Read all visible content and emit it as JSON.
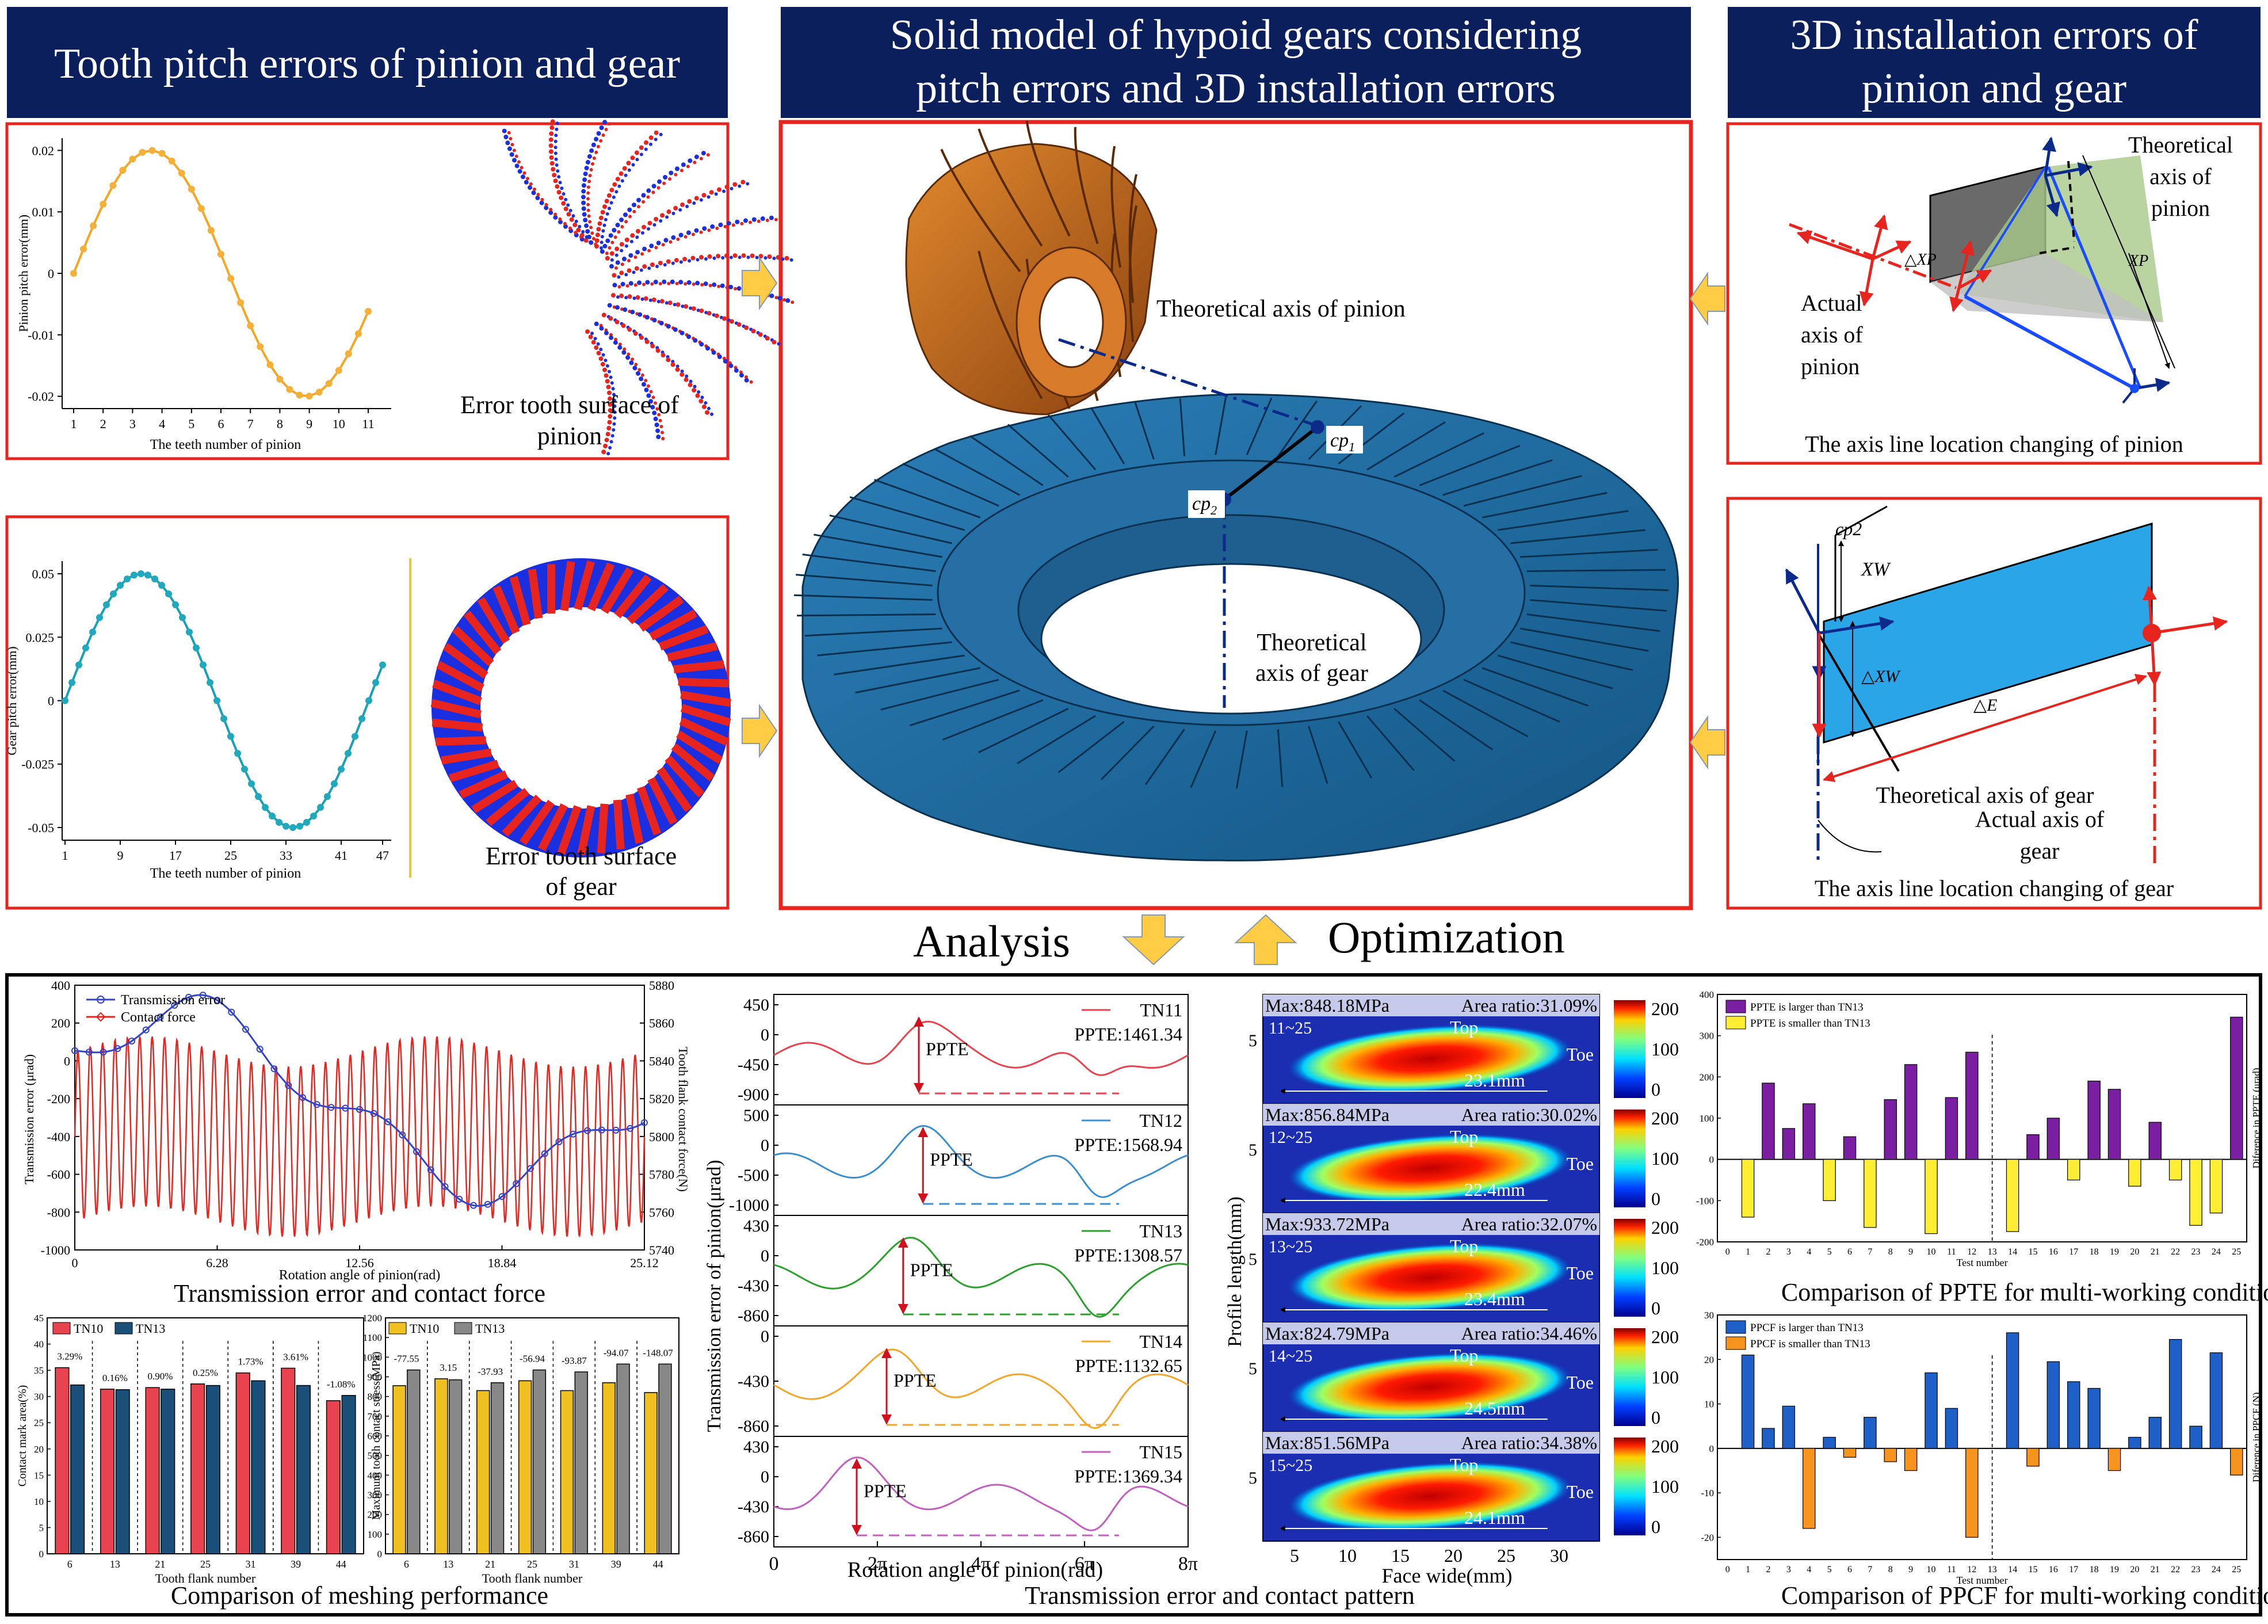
{
  "headers": {
    "pitch_errors": "Tooth pitch errors of pinion and gear",
    "solid_model_line1": "Solid model of hypoid gears considering",
    "solid_model_line2": "pitch errors and 3D installation errors",
    "install_line1": "3D installation errors of",
    "install_line2": "pinion and gear"
  },
  "colors": {
    "header_bg": "#0b1f5c",
    "frame_red": "#e8241f",
    "gear_blue": "#1f6aa0",
    "pinion_orange": "#c8661e",
    "arrow_yellow": "#ffcc44"
  },
  "pinion_panel": {
    "ylabel": "Pinion pitch error(mm)",
    "xlabel": "The teeth number of pinion",
    "surface_caption_1": "Error tooth surface of",
    "surface_caption_2": "pinion",
    "chart_data": {
      "type": "line",
      "x": [
        1,
        2,
        3,
        4,
        5,
        6,
        7,
        8,
        9,
        10,
        11
      ],
      "yticks": [
        "0.02",
        "0.01",
        "0",
        "-0.01",
        "-0.02"
      ],
      "ylim": [
        -0.022,
        0.022
      ],
      "series": [
        {
          "name": "pinion pitch error",
          "amplitude": 0.02,
          "period_teeth": 11
        }
      ]
    }
  },
  "gear_panel": {
    "ylabel": "Gear pitch error(mm)",
    "xlabel": "The teeth number of pinion",
    "surface_caption_1": "Error tooth surface",
    "surface_caption_2": "of gear",
    "chart_data": {
      "type": "line",
      "xticks": [
        "1",
        "9",
        "17",
        "25",
        "33",
        "41",
        "47"
      ],
      "yticks": [
        "0.05",
        "0.025",
        "0",
        "-0.025",
        "-0.05"
      ],
      "ylim": [
        -0.055,
        0.055
      ],
      "series": [
        {
          "name": "gear pitch error",
          "amplitude": 0.05,
          "points": 47
        }
      ]
    }
  },
  "model_panel": {
    "pinion_axis_label": "Theoretical axis of pinion",
    "cp1": "cp",
    "cp1_sub": "1",
    "cp2": "cp",
    "cp2_sub": "2",
    "gear_axis_label_1": "Theoretical",
    "gear_axis_label_2": "axis of gear"
  },
  "pinion_install": {
    "actual_1": "Actual",
    "actual_2": "axis of",
    "actual_3": "pinion",
    "theo_1": "Theoretical",
    "theo_2": "axis of",
    "theo_3": "pinion",
    "dxp": "△XP",
    "xp": "XP",
    "caption": "The axis line  location changing of  pinion"
  },
  "gear_install": {
    "cp2": "cp2",
    "xw": "XW",
    "dxw": "△XW",
    "de": "△E",
    "theo": "Theoretical axis of gear",
    "actual_1": "Actual axis of",
    "actual_2": "gear",
    "caption": "The axis line  location changing of  gear"
  },
  "flow": {
    "analysis": "Analysis",
    "optimization": "Optimization"
  },
  "te_force": {
    "legend_te": "Transmission error",
    "legend_cf": "Contact force",
    "ylabel_left": "Transmission error (μrad)",
    "ylabel_right": "Tooth flank contact force(N)",
    "xlabel": "Rotation angle of pinion(rad)",
    "caption": "Transmission error and contact force",
    "chart_data": {
      "type": "line",
      "xticks": [
        "0",
        "6.28",
        "12.56",
        "18.84",
        "25.12"
      ],
      "yticks_left": [
        "400",
        "200",
        "0",
        "-200",
        "-400",
        "-600",
        "-800",
        "-1000"
      ],
      "yticks_right": [
        "5880",
        "5860",
        "5840",
        "5820",
        "5800",
        "5780",
        "5760",
        "5740"
      ],
      "xlim": [
        0,
        25.12
      ],
      "ylim_left": [
        -1000,
        400
      ],
      "ylim_right": [
        5740,
        5880
      ]
    }
  },
  "meshing": {
    "caption": "Comparison of meshing performance",
    "left": {
      "ylabel": "Contact mark area(%)",
      "xlabel": "Tooth flank number",
      "legend": [
        "TN10",
        "TN13"
      ],
      "chart_data": {
        "type": "bar",
        "categories": [
          "6",
          "13",
          "21",
          "25",
          "31",
          "39",
          "44"
        ],
        "series": [
          {
            "name": "TN10",
            "values": [
              35.5,
              31.4,
              31.7,
              32.4,
              34.5,
              35.4,
              29.2
            ]
          },
          {
            "name": "TN13",
            "values": [
              32.2,
              31.3,
              31.4,
              32.1,
              33.0,
              32.1,
              30.2
            ]
          }
        ],
        "labels": [
          "3.29%",
          "0.16%",
          "0.90%",
          "0.25%",
          "1.73%",
          "3.61%",
          "-1.08%"
        ],
        "ylim": [
          0,
          45
        ],
        "yticks": [
          "0",
          "5",
          "10",
          "15",
          "20",
          "25",
          "30",
          "35",
          "40",
          "45"
        ]
      }
    },
    "right": {
      "ylabel": "Maximum tooth contact stress(MPa)",
      "xlabel": "Tooth flank number",
      "legend": [
        "TN10",
        "TN13"
      ],
      "chart_data": {
        "type": "bar",
        "categories": [
          "6",
          "13",
          "21",
          "25",
          "31",
          "39",
          "44"
        ],
        "series": [
          {
            "name": "TN10",
            "values": [
              855,
              890,
              830,
              880,
              830,
              870,
              820
            ]
          },
          {
            "name": "TN13",
            "values": [
              935,
              885,
              870,
              935,
              925,
              965,
              965
            ]
          }
        ],
        "labels": [
          "-77.55",
          "3.15",
          "-37.93",
          "-56.94",
          "-93.87",
          "-94.07",
          "-148.07"
        ],
        "ylim": [
          0,
          1200
        ],
        "yticks": [
          "0",
          "100",
          "200",
          "300",
          "400",
          "500",
          "600",
          "700",
          "800",
          "900",
          "1000",
          "1100",
          "1200"
        ]
      }
    }
  },
  "te_stack": {
    "ylabel": "Transmission error of pinion(μrad)",
    "xlabel": "Rotation angle of pinion(rad)",
    "caption": "Transmission error and contact pattern",
    "xticks": [
      "0",
      "2π",
      "4π",
      "6π",
      "8π"
    ],
    "ppte_tag": "PPTE",
    "chart_data": [
      {
        "type": "line",
        "name": "TN11",
        "ppte": "PPTE:1461.34",
        "color": "#e8434f",
        "yticks": [
          "450",
          "0",
          "-450",
          "-900"
        ]
      },
      {
        "type": "line",
        "name": "TN12",
        "ppte": "PPTE:1568.94",
        "color": "#3a8fd0",
        "yticks": [
          "500",
          "0",
          "-500",
          "-1000"
        ]
      },
      {
        "type": "line",
        "name": "TN13",
        "ppte": "PPTE:1308.57",
        "color": "#2ca02c",
        "yticks": [
          "430",
          "0",
          "-430",
          "-860"
        ]
      },
      {
        "type": "line",
        "name": "TN14",
        "ppte": "PPTE:1132.65",
        "color": "#f2a72a",
        "yticks": [
          "0",
          "-430",
          "-860"
        ]
      },
      {
        "type": "line",
        "name": "TN15",
        "ppte": "PPTE:1369.34",
        "color": "#c25fbf",
        "yticks": [
          "430",
          "0",
          "-430",
          "-860"
        ]
      }
    ]
  },
  "contact": {
    "ylabel": "Profile length(mm)",
    "xlabel": "Face wide(mm)",
    "top": "Top",
    "toe": "Toe",
    "ytick": "5",
    "xticks": [
      "5",
      "10",
      "15",
      "20",
      "25",
      "30"
    ],
    "colorbar_ticks": [
      "200",
      "100",
      "0"
    ],
    "chart_data": [
      {
        "type": "heatmap",
        "max": "Max:848.18MPa",
        "area": "Area ratio:31.09%",
        "id": "11~25",
        "length": "23.1mm"
      },
      {
        "type": "heatmap",
        "max": "Max:856.84MPa",
        "area": "Area ratio:30.02%",
        "id": "12~25",
        "length": "22.4mm"
      },
      {
        "type": "heatmap",
        "max": "Max:933.72MPa",
        "area": "Area ratio:32.07%",
        "id": "13~25",
        "length": "23.4mm"
      },
      {
        "type": "heatmap",
        "max": "Max:824.79MPa",
        "area": "Area ratio:34.46%",
        "id": "14~25",
        "length": "24.5mm"
      },
      {
        "type": "heatmap",
        "max": "Max:851.56MPa",
        "area": "Area ratio:34.38%",
        "id": "15~25",
        "length": "24.1mm"
      }
    ]
  },
  "ppte_cmp": {
    "legend_large": "PPTE is larger than TN13",
    "legend_small": "PPTE is smaller than TN13",
    "ylabel": "Diference in PPTE (μrad)",
    "xlabel": "Test number",
    "caption": "Comparison of PPTE for multi-working conditions",
    "chart_data": {
      "type": "bar",
      "categories": [
        "0",
        "1",
        "2",
        "3",
        "4",
        "5",
        "6",
        "7",
        "8",
        "9",
        "10",
        "11",
        "12",
        "13",
        "14",
        "15",
        "16",
        "17",
        "18",
        "19",
        "20",
        "21",
        "22",
        "23",
        "24",
        "25"
      ],
      "values": [
        null,
        -140,
        185,
        75,
        135,
        -100,
        55,
        -165,
        145,
        230,
        -180,
        150,
        260,
        null,
        -175,
        60,
        100,
        -50,
        190,
        170,
        -65,
        90,
        -50,
        -160,
        -130,
        345
      ],
      "ylim": [
        -200,
        400
      ],
      "yticks": [
        "400",
        "300",
        "200",
        "100",
        "0",
        "-100",
        "-200"
      ]
    }
  },
  "ppcf_cmp": {
    "legend_large": "PPCF is larger than TN13",
    "legend_small": "PPCF is smaller than TN13",
    "ylabel": "Diference in PPCF (N)",
    "xlabel": "Test number",
    "caption": "Comparison of PPCF for multi-working conditions",
    "chart_data": {
      "type": "bar",
      "categories": [
        "0",
        "1",
        "2",
        "3",
        "4",
        "5",
        "6",
        "7",
        "8",
        "9",
        "10",
        "11",
        "12",
        "13",
        "14",
        "15",
        "16",
        "17",
        "18",
        "19",
        "20",
        "21",
        "22",
        "23",
        "24",
        "25"
      ],
      "values": [
        null,
        21,
        4.5,
        9.5,
        -18,
        2.5,
        -2,
        7,
        -3,
        -5,
        17,
        9,
        -20,
        null,
        26,
        -4,
        19.5,
        15,
        13.5,
        -5,
        2.5,
        7,
        24.5,
        5,
        21.5,
        -6
      ],
      "ylim": [
        -25,
        30
      ],
      "yticks": [
        "30",
        "20",
        "10",
        "0",
        "-10",
        "-20"
      ]
    }
  }
}
